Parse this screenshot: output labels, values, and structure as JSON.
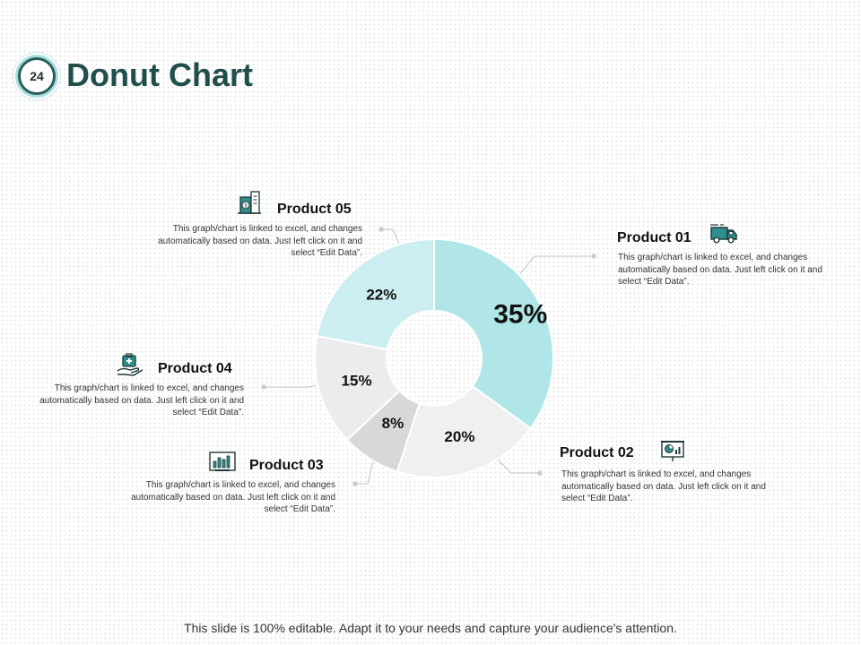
{
  "slide": {
    "number": "24",
    "title": "Donut Chart",
    "footer": "This slide is 100% editable. Adapt it to your needs and capture your audience's attention."
  },
  "products": [
    {
      "id": "p1",
      "title": "Product 01",
      "desc": "This graph/chart is linked to excel, and changes automatically based on data. Just left click on it and select “Edit Data”.",
      "icon": "delivery-truck-icon"
    },
    {
      "id": "p2",
      "title": "Product 02",
      "desc": "This graph/chart is linked to excel, and changes automatically based on data. Just left click on it and select “Edit Data”.",
      "icon": "presentation-board-icon"
    },
    {
      "id": "p3",
      "title": "Product 03",
      "desc": "This graph/chart is linked to excel, and changes automatically based on data. Just left click on it and select “Edit Data”.",
      "icon": "bar-chart-screen-icon"
    },
    {
      "id": "p4",
      "title": "Product 04",
      "desc": "This graph/chart is linked to excel, and changes automatically based on data. Just left click on it and select “Edit Data”.",
      "icon": "hand-medical-kit-icon"
    },
    {
      "id": "p5",
      "title": "Product 05",
      "desc": "This graph/chart is linked to excel, and changes automatically based on data. Just left click on it and select “Edit Data”.",
      "icon": "money-building-icon"
    }
  ],
  "colors": {
    "title": "#1f4e4c",
    "badge_ring": "#a9dfe0",
    "icon_teal": "#2f8f8c",
    "icon_dark": "#1f3838"
  },
  "chart_data": {
    "type": "pie",
    "subtype": "donut",
    "labels": [
      "Product 01",
      "Product 02",
      "Product 03",
      "Product 04",
      "Product 05"
    ],
    "values": [
      35,
      20,
      8,
      15,
      22
    ],
    "value_labels": [
      "35%",
      "20%",
      "8%",
      "15%",
      "22%"
    ],
    "colors": [
      "#b0e6e8",
      "#f0f0f0",
      "#d8d8d8",
      "#ececec",
      "#cdeef0"
    ],
    "start_angle_deg": 0,
    "direction": "clockwise"
  }
}
